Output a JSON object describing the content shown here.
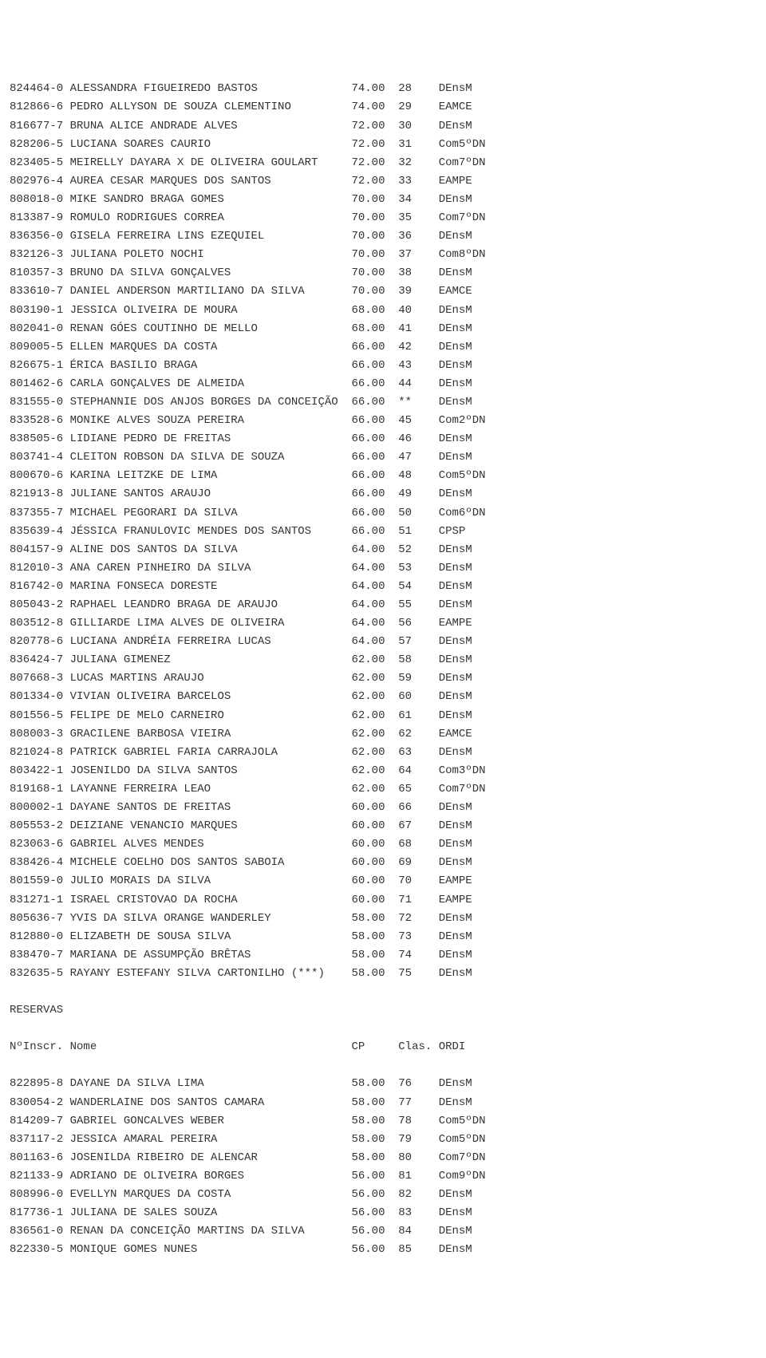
{
  "main_rows": [
    {
      "inscr": "824464-0",
      "nome": "ALESSANDRA FIGUEIREDO BASTOS",
      "cp": "74.00",
      "clas": "28",
      "ordi": "DEnsM"
    },
    {
      "inscr": "812866-6",
      "nome": "PEDRO ALLYSON DE SOUZA CLEMENTINO",
      "cp": "74.00",
      "clas": "29",
      "ordi": "EAMCE"
    },
    {
      "inscr": "816677-7",
      "nome": "BRUNA ALICE ANDRADE ALVES",
      "cp": "72.00",
      "clas": "30",
      "ordi": "DEnsM"
    },
    {
      "inscr": "828206-5",
      "nome": "LUCIANA SOARES CAURIO",
      "cp": "72.00",
      "clas": "31",
      "ordi": "Com5ºDN"
    },
    {
      "inscr": "823405-5",
      "nome": "MEIRELLY DAYARA X DE OLIVEIRA GOULART",
      "cp": "72.00",
      "clas": "32",
      "ordi": "Com7ºDN"
    },
    {
      "inscr": "802976-4",
      "nome": "AUREA CESAR MARQUES DOS SANTOS",
      "cp": "72.00",
      "clas": "33",
      "ordi": "EAMPE"
    },
    {
      "inscr": "808018-0",
      "nome": "MIKE SANDRO BRAGA GOMES",
      "cp": "70.00",
      "clas": "34",
      "ordi": "DEnsM"
    },
    {
      "inscr": "813387-9",
      "nome": "ROMULO RODRIGUES CORREA",
      "cp": "70.00",
      "clas": "35",
      "ordi": "Com7ºDN"
    },
    {
      "inscr": "836356-0",
      "nome": "GISELA FERREIRA LINS EZEQUIEL",
      "cp": "70.00",
      "clas": "36",
      "ordi": "DEnsM"
    },
    {
      "inscr": "832126-3",
      "nome": "JULIANA POLETO NOCHI",
      "cp": "70.00",
      "clas": "37",
      "ordi": "Com8ºDN"
    },
    {
      "inscr": "810357-3",
      "nome": "BRUNO DA SILVA GONÇALVES",
      "cp": "70.00",
      "clas": "38",
      "ordi": "DEnsM"
    },
    {
      "inscr": "833610-7",
      "nome": "DANIEL ANDERSON MARTILIANO DA SILVA",
      "cp": "70.00",
      "clas": "39",
      "ordi": "EAMCE"
    },
    {
      "inscr": "803190-1",
      "nome": "JESSICA OLIVEIRA DE MOURA",
      "cp": "68.00",
      "clas": "40",
      "ordi": "DEnsM"
    },
    {
      "inscr": "802041-0",
      "nome": "RENAN GÓES COUTINHO DE MELLO",
      "cp": "68.00",
      "clas": "41",
      "ordi": "DEnsM"
    },
    {
      "inscr": "809005-5",
      "nome": "ELLEN MARQUES DA COSTA",
      "cp": "66.00",
      "clas": "42",
      "ordi": "DEnsM"
    },
    {
      "inscr": "826675-1",
      "nome": "ÉRICA BASILIO BRAGA",
      "cp": "66.00",
      "clas": "43",
      "ordi": "DEnsM"
    },
    {
      "inscr": "801462-6",
      "nome": "CARLA GONÇALVES DE ALMEIDA",
      "cp": "66.00",
      "clas": "44",
      "ordi": "DEnsM"
    },
    {
      "inscr": "831555-0",
      "nome": "STEPHANNIE DOS ANJOS BORGES DA CONCEIÇÃO",
      "cp": "66.00",
      "clas": "**",
      "ordi": "DEnsM"
    },
    {
      "inscr": "833528-6",
      "nome": "MONIKE ALVES SOUZA PEREIRA",
      "cp": "66.00",
      "clas": "45",
      "ordi": "Com2ºDN"
    },
    {
      "inscr": "838505-6",
      "nome": "LIDIANE PEDRO DE FREITAS",
      "cp": "66.00",
      "clas": "46",
      "ordi": "DEnsM"
    },
    {
      "inscr": "803741-4",
      "nome": "CLEITON ROBSON DA SILVA DE SOUZA",
      "cp": "66.00",
      "clas": "47",
      "ordi": "DEnsM"
    },
    {
      "inscr": "800670-6",
      "nome": "KARINA LEITZKE DE LIMA",
      "cp": "66.00",
      "clas": "48",
      "ordi": "Com5ºDN"
    },
    {
      "inscr": "821913-8",
      "nome": "JULIANE SANTOS ARAUJO",
      "cp": "66.00",
      "clas": "49",
      "ordi": "DEnsM"
    },
    {
      "inscr": "837355-7",
      "nome": "MICHAEL PEGORARI DA SILVA",
      "cp": "66.00",
      "clas": "50",
      "ordi": "Com6ºDN"
    },
    {
      "inscr": "835639-4",
      "nome": "JÉSSICA FRANULOVIC MENDES DOS SANTOS",
      "cp": "66.00",
      "clas": "51",
      "ordi": "CPSP"
    },
    {
      "inscr": "804157-9",
      "nome": "ALINE DOS SANTOS DA SILVA",
      "cp": "64.00",
      "clas": "52",
      "ordi": "DEnsM"
    },
    {
      "inscr": "812010-3",
      "nome": "ANA CAREN PINHEIRO DA SILVA",
      "cp": "64.00",
      "clas": "53",
      "ordi": "DEnsM"
    },
    {
      "inscr": "816742-0",
      "nome": "MARINA FONSECA DORESTE",
      "cp": "64.00",
      "clas": "54",
      "ordi": "DEnsM"
    },
    {
      "inscr": "805043-2",
      "nome": "RAPHAEL LEANDRO BRAGA DE ARAUJO",
      "cp": "64.00",
      "clas": "55",
      "ordi": "DEnsM"
    },
    {
      "inscr": "803512-8",
      "nome": "GILLIARDE LIMA ALVES DE OLIVEIRA",
      "cp": "64.00",
      "clas": "56",
      "ordi": "EAMPE"
    },
    {
      "inscr": "820778-6",
      "nome": "LUCIANA ANDRÉIA FERREIRA LUCAS",
      "cp": "64.00",
      "clas": "57",
      "ordi": "DEnsM"
    },
    {
      "inscr": "836424-7",
      "nome": "JULIANA GIMENEZ",
      "cp": "62.00",
      "clas": "58",
      "ordi": "DEnsM"
    },
    {
      "inscr": "807668-3",
      "nome": "LUCAS MARTINS ARAUJO",
      "cp": "62.00",
      "clas": "59",
      "ordi": "DEnsM"
    },
    {
      "inscr": "801334-0",
      "nome": "VIVIAN OLIVEIRA BARCELOS",
      "cp": "62.00",
      "clas": "60",
      "ordi": "DEnsM"
    },
    {
      "inscr": "801556-5",
      "nome": "FELIPE DE MELO CARNEIRO",
      "cp": "62.00",
      "clas": "61",
      "ordi": "DEnsM"
    },
    {
      "inscr": "808003-3",
      "nome": "GRACILENE BARBOSA VIEIRA",
      "cp": "62.00",
      "clas": "62",
      "ordi": "EAMCE"
    },
    {
      "inscr": "821024-8",
      "nome": "PATRICK GABRIEL FARIA CARRAJOLA",
      "cp": "62.00",
      "clas": "63",
      "ordi": "DEnsM"
    },
    {
      "inscr": "803422-1",
      "nome": "JOSENILDO DA SILVA SANTOS",
      "cp": "62.00",
      "clas": "64",
      "ordi": "Com3ºDN"
    },
    {
      "inscr": "819168-1",
      "nome": "LAYANNE FERREIRA LEAO",
      "cp": "62.00",
      "clas": "65",
      "ordi": "Com7ºDN"
    },
    {
      "inscr": "800002-1",
      "nome": "DAYANE SANTOS DE FREITAS",
      "cp": "60.00",
      "clas": "66",
      "ordi": "DEnsM"
    },
    {
      "inscr": "805553-2",
      "nome": "DEIZIANE VENANCIO MARQUES",
      "cp": "60.00",
      "clas": "67",
      "ordi": "DEnsM"
    },
    {
      "inscr": "823063-6",
      "nome": "GABRIEL ALVES MENDES",
      "cp": "60.00",
      "clas": "68",
      "ordi": "DEnsM"
    },
    {
      "inscr": "838426-4",
      "nome": "MICHELE COELHO DOS SANTOS SABOIA",
      "cp": "60.00",
      "clas": "69",
      "ordi": "DEnsM"
    },
    {
      "inscr": "801559-0",
      "nome": "JULIO MORAIS DA SILVA",
      "cp": "60.00",
      "clas": "70",
      "ordi": "EAMPE"
    },
    {
      "inscr": "831271-1",
      "nome": "ISRAEL CRISTOVAO DA ROCHA",
      "cp": "60.00",
      "clas": "71",
      "ordi": "EAMPE"
    },
    {
      "inscr": "805636-7",
      "nome": "YVIS DA SILVA ORANGE WANDERLEY",
      "cp": "58.00",
      "clas": "72",
      "ordi": "DEnsM"
    },
    {
      "inscr": "812880-0",
      "nome": "ELIZABETH DE SOUSA SILVA",
      "cp": "58.00",
      "clas": "73",
      "ordi": "DEnsM"
    },
    {
      "inscr": "838470-7",
      "nome": "MARIANA DE ASSUMPÇÃO BRÊTAS",
      "cp": "58.00",
      "clas": "74",
      "ordi": "DEnsM"
    },
    {
      "inscr": "832635-5",
      "nome": "RAYANY ESTEFANY SILVA CARTONILHO (***)",
      "cp": "58.00",
      "clas": "75",
      "ordi": "DEnsM"
    }
  ],
  "reservas_title": "RESERVAS",
  "reservas_header": {
    "inscr": "NºInscr.",
    "nome": "Nome",
    "cp": "CP",
    "clas": "Clas.",
    "ordi": "ORDI"
  },
  "reservas_rows": [
    {
      "inscr": "822895-8",
      "nome": "DAYANE DA SILVA LIMA",
      "cp": "58.00",
      "clas": "76",
      "ordi": "DEnsM"
    },
    {
      "inscr": "830054-2",
      "nome": "WANDERLAINE DOS SANTOS CAMARA",
      "cp": "58.00",
      "clas": "77",
      "ordi": "DEnsM"
    },
    {
      "inscr": "814209-7",
      "nome": "GABRIEL GONCALVES WEBER",
      "cp": "58.00",
      "clas": "78",
      "ordi": "Com5ºDN"
    },
    {
      "inscr": "837117-2",
      "nome": "JESSICA AMARAL PEREIRA",
      "cp": "58.00",
      "clas": "79",
      "ordi": "Com5ºDN"
    },
    {
      "inscr": "801163-6",
      "nome": "JOSENILDA RIBEIRO DE ALENCAR",
      "cp": "58.00",
      "clas": "80",
      "ordi": "Com7ºDN"
    },
    {
      "inscr": "821133-9",
      "nome": "ADRIANO DE OLIVEIRA BORGES",
      "cp": "56.00",
      "clas": "81",
      "ordi": "Com9ºDN"
    },
    {
      "inscr": "808996-0",
      "nome": "EVELLYN MARQUES DA COSTA",
      "cp": "56.00",
      "clas": "82",
      "ordi": "DEnsM"
    },
    {
      "inscr": "817736-1",
      "nome": "JULIANA DE SALES SOUZA",
      "cp": "56.00",
      "clas": "83",
      "ordi": "DEnsM"
    },
    {
      "inscr": "836561-0",
      "nome": "RENAN DA CONCEIÇÃO MARTINS DA SILVA",
      "cp": "56.00",
      "clas": "84",
      "ordi": "DEnsM"
    },
    {
      "inscr": "822330-5",
      "nome": "MONIQUE GOMES NUNES",
      "cp": "56.00",
      "clas": "85",
      "ordi": "DEnsM"
    }
  ],
  "col_widths": {
    "inscr": 9,
    "nome": 42,
    "cp": 7,
    "clas": 6
  }
}
